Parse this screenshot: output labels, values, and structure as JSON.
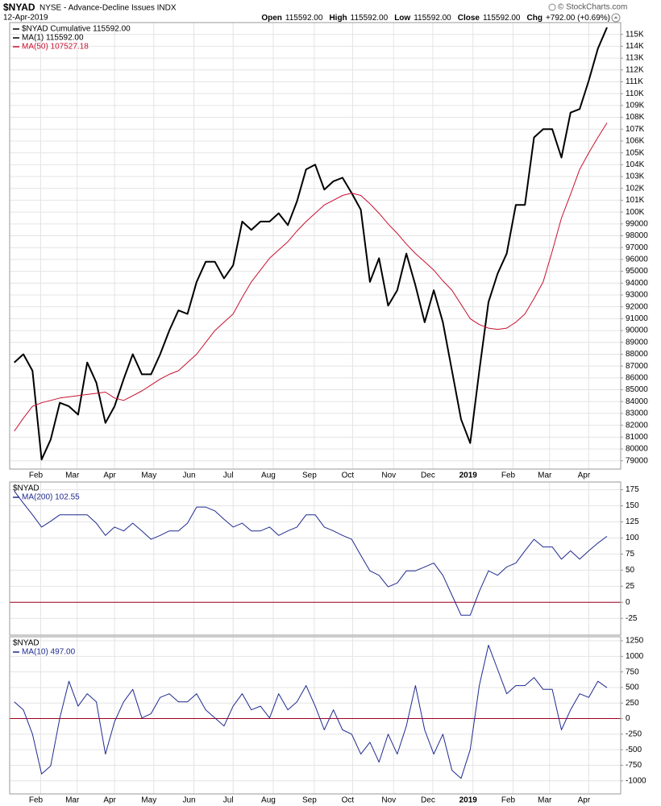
{
  "header": {
    "symbol": "$NYAD",
    "title": "NYSE - Advance-Decline Issues INDX",
    "date": "12-Apr-2019",
    "copyright": "© StockCharts.com",
    "quote": [
      {
        "label": "Open",
        "value": "115592.00"
      },
      {
        "label": "High",
        "value": "115592.00"
      },
      {
        "label": "Low",
        "value": "115592.00"
      },
      {
        "label": "Close",
        "value": "115592.00"
      },
      {
        "label": "Chg",
        "value": "+792.00 (+0.69%)"
      }
    ]
  },
  "chart_data": [
    {
      "type": "line",
      "grid": true,
      "x": [
        0,
        1,
        2,
        3,
        4,
        5,
        6,
        7,
        8,
        9,
        10,
        11,
        12,
        13,
        14,
        15,
        16,
        17,
        18,
        19,
        20,
        21,
        22,
        23,
        24,
        25,
        26,
        27,
        28,
        29,
        30,
        31,
        32,
        33,
        34,
        35,
        36,
        37,
        38,
        39,
        40,
        41,
        42,
        43,
        44,
        45,
        46,
        47,
        48,
        49,
        50,
        51,
        52,
        53,
        54,
        55,
        56,
        57,
        58,
        59,
        60,
        61,
        62,
        63,
        64,
        65
      ],
      "xlim": [
        -0.5,
        66.5
      ],
      "xticks": [
        {
          "value": 2.9,
          "label": "Feb"
        },
        {
          "value": 6.9,
          "label": "Mar"
        },
        {
          "value": 11.0,
          "label": "Apr"
        },
        {
          "value": 15.3,
          "label": "May"
        },
        {
          "value": 19.7,
          "label": "Jun"
        },
        {
          "value": 24.0,
          "label": "Jul"
        },
        {
          "value": 28.4,
          "label": "Aug"
        },
        {
          "value": 32.9,
          "label": "Sep"
        },
        {
          "value": 37.1,
          "label": "Oct"
        },
        {
          "value": 41.6,
          "label": "Nov"
        },
        {
          "value": 45.9,
          "label": "Dec"
        },
        {
          "value": 50.3,
          "label": "2019"
        },
        {
          "value": 54.7,
          "label": "Feb"
        },
        {
          "value": 58.7,
          "label": "Mar"
        },
        {
          "value": 63.0,
          "label": "Apr"
        }
      ],
      "ylim": [
        78300,
        116000
      ],
      "yticks": [
        79000,
        80000,
        81000,
        82000,
        83000,
        84000,
        85000,
        86000,
        87000,
        88000,
        89000,
        90000,
        91000,
        92000,
        93000,
        94000,
        95000,
        96000,
        97000,
        98000,
        99000,
        {
          "value": 100000,
          "label": "100K"
        },
        {
          "value": 101000,
          "label": "101K"
        },
        {
          "value": 102000,
          "label": "102K"
        },
        {
          "value": 103000,
          "label": "103K"
        },
        {
          "value": 104000,
          "label": "104K"
        },
        {
          "value": 105000,
          "label": "105K"
        },
        {
          "value": 106000,
          "label": "106K"
        },
        {
          "value": 107000,
          "label": "107K"
        },
        {
          "value": 108000,
          "label": "108K"
        },
        {
          "value": 109000,
          "label": "109K"
        },
        {
          "value": 110000,
          "label": "110K"
        },
        {
          "value": 111000,
          "label": "111K"
        },
        {
          "value": 112000,
          "label": "112K"
        },
        {
          "value": 113000,
          "label": "113K"
        },
        {
          "value": 114000,
          "label": "114K"
        },
        {
          "value": 115000,
          "label": "115K"
        }
      ],
      "labels": [
        "MA(1) 115592.00"
      ],
      "series": [
        {
          "name": "$NYAD Cumulative 115592.00",
          "color": "#000000",
          "width": 2,
          "values": [
            87300,
            88000,
            86600,
            79100,
            80800,
            83900,
            83600,
            82900,
            87300,
            85600,
            82200,
            83600,
            85900,
            88000,
            86300,
            86300,
            88000,
            90000,
            91700,
            91400,
            94100,
            95800,
            95800,
            94400,
            95500,
            99200,
            98500,
            99200,
            99200,
            99900,
            98900,
            100900,
            103600,
            104000,
            101900,
            102600,
            102900,
            101600,
            100200,
            94100,
            96100,
            92100,
            93400,
            96500,
            93800,
            90700,
            93400,
            90700,
            86600,
            82500,
            80500,
            86600,
            92400,
            94800,
            96500,
            100600,
            100600,
            106300,
            107000,
            107000,
            104600,
            108400,
            108700,
            111100,
            113800,
            115592
          ]
        },
        {
          "name": "MA(50) 107527.18",
          "color": "#c8102e",
          "width": 1,
          "values": [
            81500,
            82600,
            83600,
            83900,
            84100,
            84300,
            84400,
            84500,
            84600,
            84700,
            84800,
            84300,
            84100,
            84500,
            84900,
            85400,
            85900,
            86300,
            86600,
            87300,
            88000,
            89000,
            90000,
            90700,
            91400,
            92800,
            94100,
            95100,
            96100,
            96800,
            97500,
            98400,
            99200,
            99900,
            100600,
            101000,
            101400,
            101600,
            101400,
            100700,
            99900,
            99000,
            98200,
            97300,
            96500,
            95800,
            95100,
            94200,
            93400,
            92200,
            91000,
            90500,
            90200,
            90100,
            90200,
            90700,
            91400,
            92700,
            94100,
            96700,
            99500,
            101500,
            103600,
            105000,
            106300,
            107527.18
          ]
        }
      ]
    },
    {
      "type": "line",
      "grid": true,
      "label": "$NYAD",
      "ylim": [
        -51,
        187
      ],
      "yticks": [
        175,
        150,
        125,
        100,
        75,
        50,
        25,
        0,
        -25
      ],
      "refline": 0,
      "refline_color": "#a0001e",
      "series": [
        {
          "name": "MA(200) 102.55",
          "color": "#1f2a8f",
          "width": 1,
          "values": [
            173,
            154,
            136,
            117,
            126,
            136,
            136,
            136,
            136,
            123,
            104,
            117,
            111,
            123,
            111,
            98,
            104,
            111,
            111,
            123,
            148,
            148,
            142,
            129,
            117,
            123,
            111,
            111,
            117,
            104,
            111,
            117,
            136,
            136,
            117,
            111,
            104,
            98,
            73,
            49,
            42,
            24,
            30,
            49,
            49,
            55,
            61,
            42,
            11,
            -20,
            -20,
            17,
            49,
            42,
            55,
            61,
            80,
            98,
            86,
            86,
            67,
            80,
            67,
            80,
            92,
            102.55
          ]
        }
      ]
    },
    {
      "type": "line",
      "grid": true,
      "label": "$NYAD",
      "ylim": [
        -1210,
        1315
      ],
      "yticks": [
        1250,
        1000,
        750,
        500,
        250,
        0,
        -250,
        -500,
        -750,
        -1000
      ],
      "refline": 0,
      "refline_color": "#a0001e",
      "series": [
        {
          "name": "MA(10) 497.00",
          "color": "#1f2a8f",
          "width": 1,
          "values": [
            270,
            140,
            -250,
            -890,
            -760,
            10,
            600,
            200,
            400,
            270,
            -570,
            -50,
            270,
            470,
            10,
            80,
            340,
            400,
            270,
            270,
            400,
            140,
            10,
            -120,
            200,
            400,
            140,
            200,
            10,
            400,
            140,
            270,
            530,
            200,
            -180,
            140,
            -180,
            -250,
            -570,
            -380,
            -700,
            -250,
            -570,
            -120,
            530,
            -180,
            -570,
            -250,
            -830,
            -960,
            -500,
            530,
            1180,
            790,
            400,
            530,
            530,
            660,
            470,
            470,
            -180,
            140,
            400,
            340,
            600,
            497
          ]
        }
      ]
    }
  ]
}
